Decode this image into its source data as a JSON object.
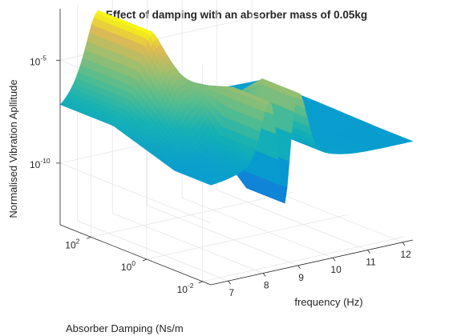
{
  "chart_data": {
    "type": "surface",
    "title": "Effect of damping with an absorber mass of 0.05kg",
    "xlabel": "frequency (Hz)",
    "ylabel": "Absorber Damping (Ns/m",
    "zlabel": "Normalised Vibration Apllitude",
    "x_ticks": [
      "7",
      "8",
      "9",
      "10",
      "11",
      "12"
    ],
    "y_ticks": [
      {
        "base": "10",
        "exp": "-2"
      },
      {
        "base": "10",
        "exp": "0"
      },
      {
        "base": "10",
        "exp": "2"
      }
    ],
    "z_ticks": [
      {
        "base": "10",
        "exp": "-10"
      },
      {
        "base": "10",
        "exp": "-5"
      }
    ],
    "x_range": [
      6.5,
      12.3
    ],
    "y_range_log10": [
      -2.3,
      3.1
    ],
    "z_range_log10": [
      -13,
      -2.5
    ],
    "z_scale": "log",
    "y_scale": "log",
    "grid": true,
    "colormap": "parula",
    "description_points": {
      "low_damping_resonances_hz": [
        8.2,
        9.0
      ],
      "low_damping_antiresonance_hz": 8.6,
      "high_damping_resonance_hz": 7.6,
      "high_damping_peak_log10_amplitude": -3.0,
      "baseline_log10_amplitude": -8.2
    }
  }
}
